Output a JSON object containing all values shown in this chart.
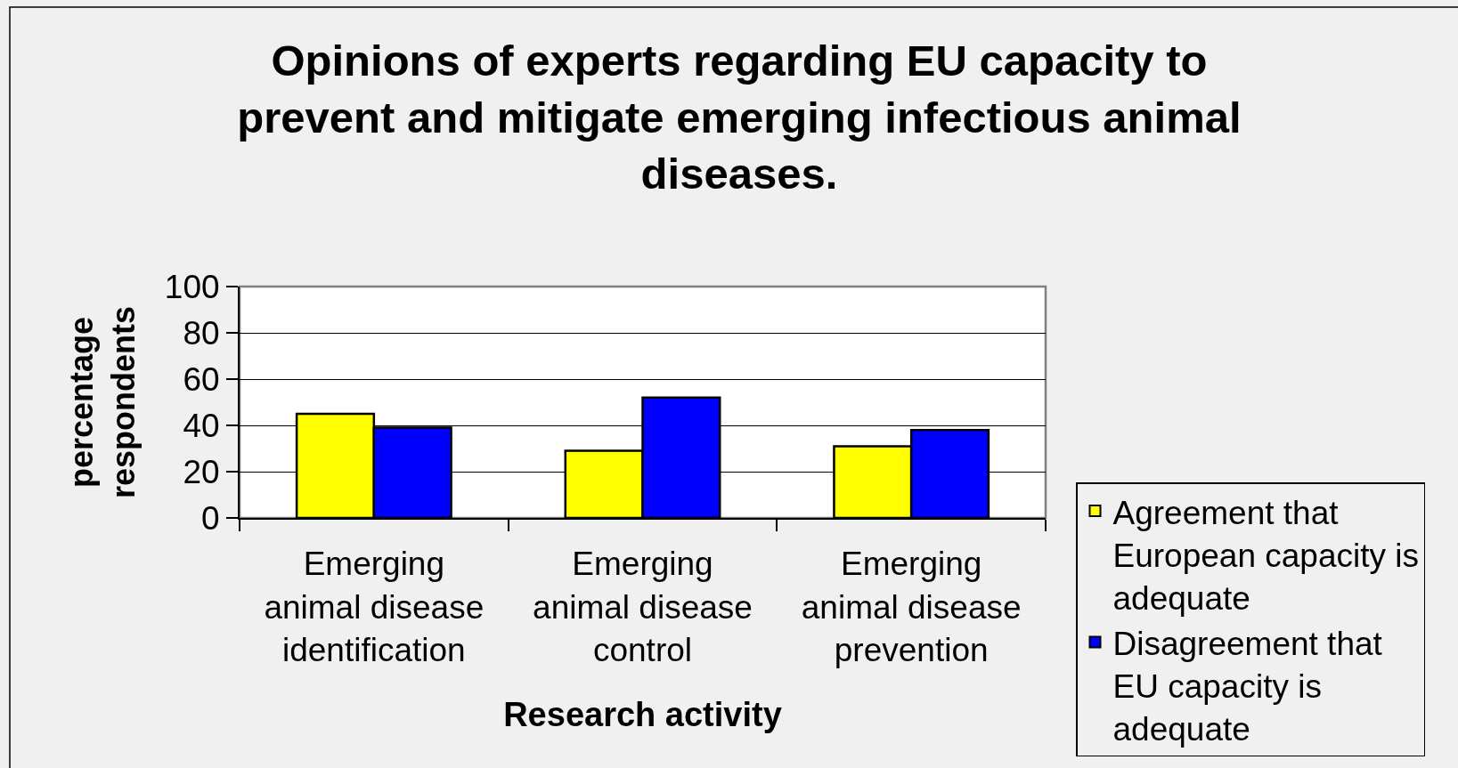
{
  "chart_data": {
    "type": "bar",
    "title": "Opinions of experts regarding EU capacity to prevent and mitigate emerging infectious animal diseases.",
    "xlabel": "Research activity",
    "ylabel": "percentage respondents",
    "categories": [
      "Emerging animal disease identification",
      "Emerging animal disease control",
      "Emerging animal disease prevention"
    ],
    "series": [
      {
        "name": "Agreement that European capacity is adequate",
        "color": "#ffff00",
        "values": [
          45,
          29,
          31
        ]
      },
      {
        "name": "Disagreement that EU capacity is adequate",
        "color": "#0000ff",
        "values": [
          39,
          52,
          38
        ]
      }
    ],
    "ylim": [
      0,
      100
    ],
    "yticks": [
      0,
      20,
      40,
      60,
      80,
      100
    ],
    "grid": "y",
    "legend": "bottom right"
  }
}
